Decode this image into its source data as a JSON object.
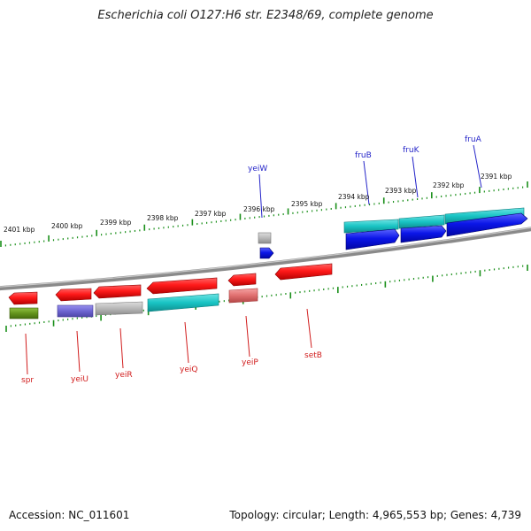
{
  "title": "Escherichia coli O127:H6 str. E2348/69, complete genome",
  "footer": {
    "accession": "Accession: NC_011601",
    "summary": "Topology: circular; Length: 4,965,553 bp; Genes: 4,739"
  },
  "colors": {
    "background": "#ffffff",
    "backbone": "#8a8a8a",
    "tick": "#1a8f1a",
    "upper_label": "#2323c8",
    "lower_label": "#d11d1d",
    "red_gene": "#ff1a1a",
    "cyan_gene": "#19c4c4",
    "blue_gene": "#0b16e8",
    "gray_gene": "#b8b8b8",
    "purple_gene": "#6d65d1",
    "olive_gene": "#64941c",
    "pink_gene": "#e06f6f"
  },
  "scale_labels": [
    "2401 kbp",
    "2400 kbp",
    "2399 kbp",
    "2398 kbp",
    "2397 kbp",
    "2396 kbp",
    "2395 kbp",
    "2394 kbp",
    "2393 kbp",
    "2392 kbp",
    "2391 kbp"
  ],
  "upper_gene_labels": [
    "yeiW",
    "fruB",
    "fruK",
    "fruA"
  ],
  "lower_gene_labels": [
    "spr",
    "yeiU",
    "yeiR",
    "yeiQ",
    "yeiP",
    "setB"
  ]
}
